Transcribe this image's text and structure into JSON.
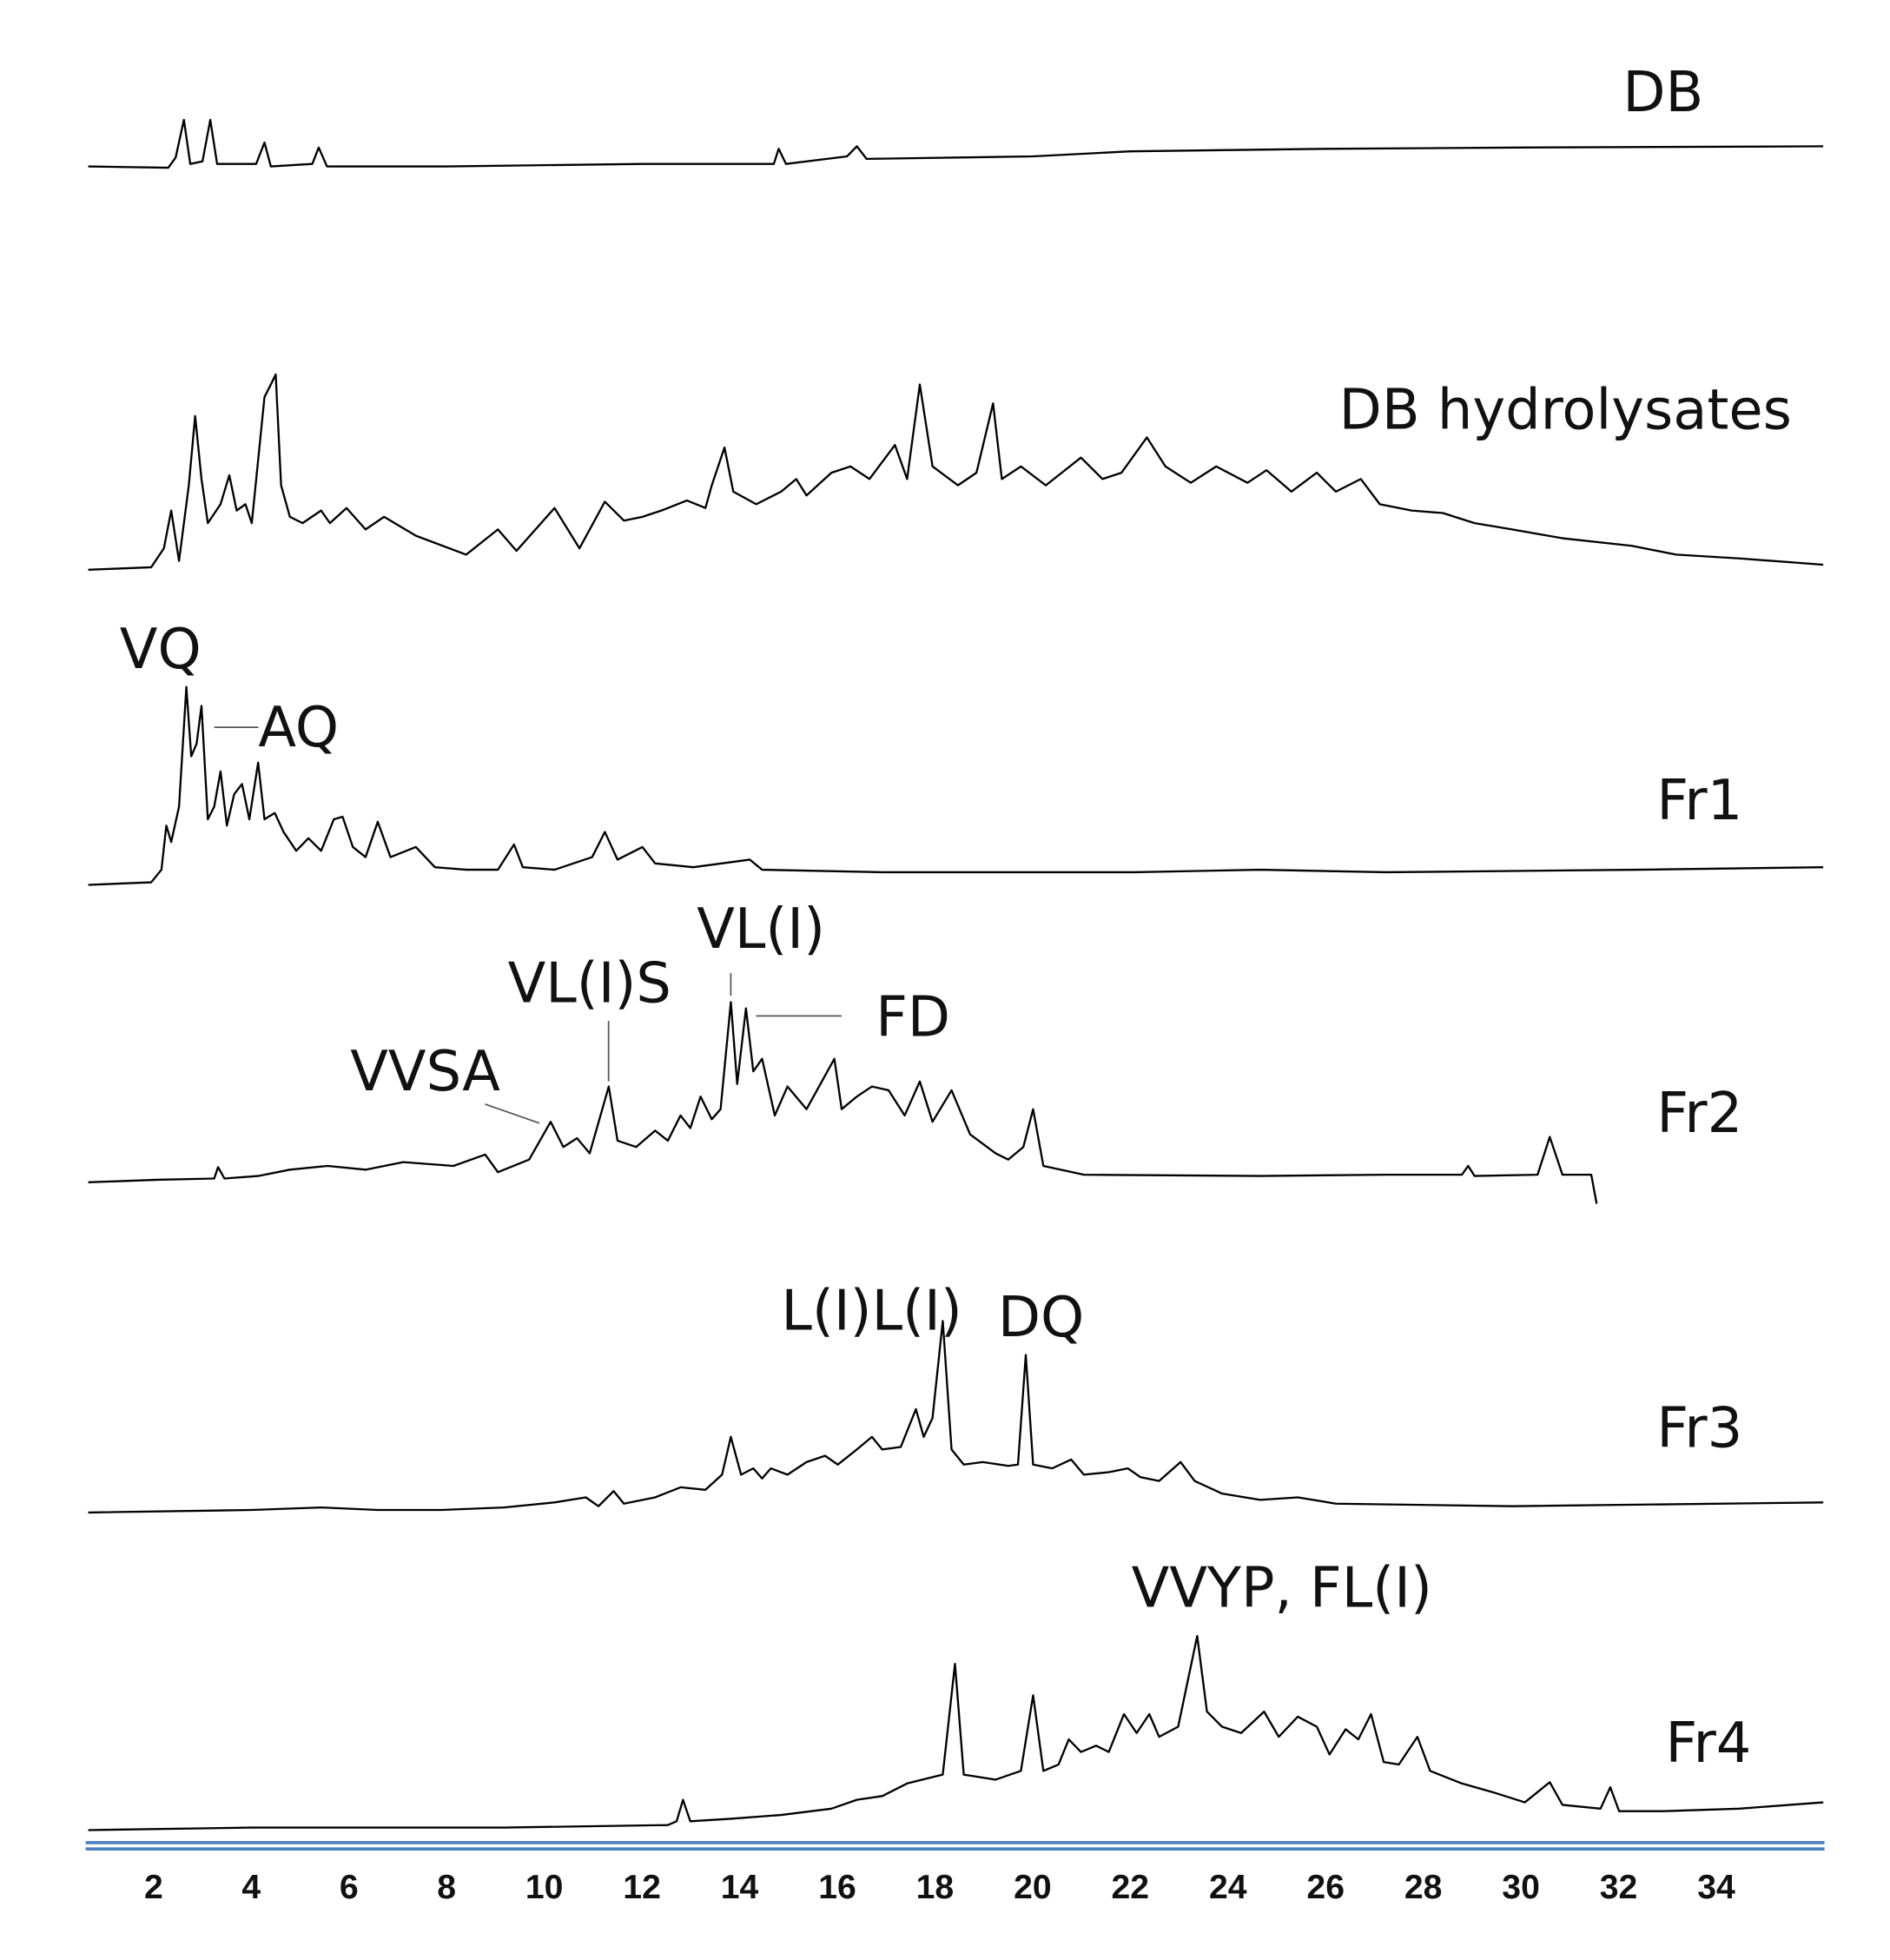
{
  "chart_data": {
    "type": "line",
    "xlim": [
      0.66,
      36.19
    ],
    "xticks": [
      2,
      4,
      6,
      8,
      10,
      12,
      14,
      16,
      18,
      20,
      22,
      24,
      26,
      28,
      30,
      32,
      34
    ],
    "series": [
      {
        "name": "DB",
        "color": "#000000",
        "annotations": [],
        "x": [
          0.66,
          2.3,
          2.45,
          2.62,
          2.75,
          3.0,
          3.16,
          3.3,
          4.1,
          4.27,
          4.4,
          5.25,
          5.38,
          5.55,
          8,
          12,
          14.7,
          14.8,
          14.95,
          16.2,
          16.4,
          16.6,
          20,
          22,
          26,
          30,
          36.19
        ],
        "values": [
          68,
          67,
          75,
          105,
          70,
          72,
          105,
          70,
          70,
          87,
          68,
          70,
          83,
          68,
          68,
          70,
          70,
          82,
          70,
          76,
          84,
          74,
          76,
          80,
          82,
          83,
          84
        ]
      },
      {
        "name": "DB hydrolysates",
        "color": "#000000",
        "annotations": [],
        "x": [
          0.66,
          1.95,
          2.21,
          2.36,
          2.52,
          2.72,
          2.85,
          2.98,
          3.11,
          3.37,
          3.55,
          3.7,
          3.88,
          4.01,
          4.27,
          4.4,
          4.5,
          4.61,
          4.79,
          5.05,
          5.43,
          5.61,
          5.95,
          6.34,
          6.72,
          7.37,
          8.4,
          9.05,
          9.43,
          10.21,
          10.72,
          11.24,
          11.63,
          12.01,
          12.4,
          12.92,
          13.3,
          13.43,
          13.69,
          13.87,
          14.34,
          14.85,
          15.16,
          15.37,
          15.88,
          16.27,
          16.66,
          17.18,
          17.43,
          17.69,
          17.95,
          18.47,
          18.85,
          19.19,
          19.37,
          19.76,
          20.27,
          20.99,
          21.43,
          21.82,
          22.34,
          22.72,
          23.24,
          23.76,
          24.4,
          24.79,
          25.3,
          25.82,
          26.21,
          26.72,
          27.11,
          27.76,
          28.4,
          29.05,
          29.82,
          30.85,
          32.27,
          33.18,
          34.47,
          36.19
        ],
        "values": [
          0,
          2,
          17,
          47,
          7,
          67,
          122,
          72,
          37,
          52,
          75,
          47,
          52,
          37,
          137,
          147,
          155,
          67,
          42,
          37,
          47,
          37,
          49,
          32,
          42,
          27,
          12,
          32,
          15,
          49,
          17,
          54,
          39,
          42,
          47,
          55,
          49,
          67,
          97,
          62,
          52,
          62,
          72,
          59,
          77,
          82,
          72,
          99,
          72,
          147,
          82,
          67,
          77,
          132,
          72,
          82,
          67,
          89,
          72,
          77,
          105,
          82,
          69,
          82,
          69,
          79,
          62,
          77,
          62,
          72,
          52,
          47,
          45,
          37,
          32,
          25,
          19,
          12,
          9,
          4
        ]
      },
      {
        "name": "Fr1",
        "color": "#000000",
        "annotations": [
          "VQ",
          "AQ"
        ],
        "x": [
          0.66,
          1.95,
          2.16,
          2.26,
          2.36,
          2.52,
          2.67,
          2.77,
          2.88,
          2.98,
          3.11,
          3.24,
          3.37,
          3.5,
          3.65,
          3.81,
          3.96,
          4.14,
          4.27,
          4.48,
          4.66,
          4.92,
          5.17,
          5.43,
          5.69,
          5.87,
          6.08,
          6.34,
          6.59,
          6.85,
          7.37,
          7.76,
          8.4,
          9.05,
          9.38,
          9.56,
          10.21,
          10.98,
          11.24,
          11.5,
          12.01,
          12.27,
          13.05,
          14.21,
          14.46,
          16.92,
          22.08,
          24.66,
          27.24,
          32.4,
          36.19
        ],
        "values": [
          2,
          4,
          14,
          49,
          36,
          64,
          159,
          104,
          114,
          144,
          54,
          64,
          92,
          49,
          74,
          82,
          54,
          99,
          54,
          59,
          44,
          29,
          39,
          29,
          54,
          56,
          32,
          24,
          52,
          24,
          32,
          16,
          14,
          14,
          34,
          16,
          14,
          24,
          44,
          22,
          32,
          19,
          16,
          22,
          14,
          12,
          12,
          14,
          12,
          14,
          16
        ]
      },
      {
        "name": "Fr2",
        "color": "#000000",
        "annotations": [
          "VVSA",
          "VL(I)S",
          "VL(I)",
          "FD"
        ],
        "x": [
          0.66,
          2.08,
          3.24,
          3.32,
          3.45,
          4.14,
          4.79,
          5.56,
          6.34,
          7.11,
          8.14,
          8.79,
          9.05,
          9.69,
          10.13,
          10.39,
          10.67,
          10.93,
          11.32,
          11.5,
          11.88,
          12.27,
          12.53,
          12.79,
          12.99,
          13.2,
          13.43,
          13.61,
          13.82,
          13.95,
          14.13,
          14.28,
          14.46,
          14.72,
          14.98,
          15.37,
          15.94,
          16.09,
          16.4,
          16.71,
          17.05,
          17.38,
          17.69,
          17.95,
          18.34,
          18.72,
          19.24,
          19.5,
          19.81,
          20.01,
          20.22,
          21.05,
          24.66,
          27.24,
          28.79,
          28.92,
          29.05,
          30.34,
          30.59,
          30.85,
          31.44,
          31.55
        ],
        "values": [
          18,
          20,
          21,
          30,
          21,
          23,
          28,
          31,
          28,
          34,
          31,
          40,
          26,
          36,
          66,
          46,
          53,
          41,
          94,
          51,
          46,
          59,
          51,
          71,
          61,
          86,
          68,
          76,
          161,
          96,
          156,
          106,
          116,
          71,
          94,
          76,
          116,
          76,
          86,
          94,
          91,
          71,
          98,
          66,
          91,
          56,
          41,
          36,
          46,
          76,
          31,
          24,
          23,
          24,
          24,
          31,
          23,
          24,
          54,
          24,
          24,
          1
        ]
      },
      {
        "name": "Fr3",
        "color": "#000000",
        "annotations": [
          "L(I)L(I)",
          "DQ"
        ],
        "x": [
          0.66,
          4.01,
          5.43,
          6.59,
          7.88,
          9.17,
          10.21,
          10.85,
          11.11,
          11.42,
          11.63,
          12.27,
          12.79,
          13.3,
          13.64,
          13.82,
          14.03,
          14.28,
          14.46,
          14.64,
          14.98,
          15.37,
          15.75,
          16.01,
          16.4,
          16.71,
          16.92,
          17.3,
          17.61,
          17.77,
          17.95,
          18.16,
          18.34,
          18.59,
          18.98,
          19.5,
          19.7,
          19.86,
          20.01,
          20.4,
          20.79,
          21.05,
          21.56,
          21.95,
          22.21,
          22.59,
          23.03,
          23.32,
          23.88,
          24.66,
          25.43,
          26.21,
          29.82,
          36.19
        ],
        "values": [
          8,
          10,
          12,
          10,
          10,
          12,
          16,
          20,
          13,
          25,
          15,
          20,
          28,
          26,
          38,
          68,
          38,
          43,
          35,
          43,
          38,
          48,
          53,
          46,
          58,
          68,
          58,
          60,
          90,
          68,
          83,
          160,
          58,
          46,
          48,
          45,
          46,
          133,
          46,
          43,
          50,
          38,
          40,
          43,
          36,
          33,
          48,
          33,
          23,
          18,
          20,
          15,
          13,
          16
        ]
      },
      {
        "name": "Fr4",
        "color": "#000000",
        "annotations": [
          "VVYP, FL(I)"
        ],
        "x": [
          0.66,
          4.01,
          9.17,
          12.53,
          12.71,
          12.84,
          12.99,
          13.82,
          14.85,
          15.88,
          16.4,
          16.92,
          17.43,
          17.95,
          18.16,
          18.41,
          18.59,
          19.24,
          19.76,
          20.01,
          20.22,
          20.53,
          20.74,
          20.99,
          21.3,
          21.56,
          21.87,
          22.13,
          22.39,
          22.59,
          22.98,
          23.37,
          23.57,
          23.88,
          24.27,
          24.74,
          25.04,
          25.43,
          25.82,
          26.08,
          26.41,
          26.67,
          26.93,
          27.19,
          27.5,
          27.88,
          28.14,
          28.79,
          29.43,
          30.08,
          30.59,
          30.85,
          31.63,
          31.83,
          32.01,
          32.92,
          34.47,
          36.19
        ],
        "values": [
          8,
          10,
          10,
          12,
          15,
          32,
          15,
          17,
          20,
          25,
          32,
          35,
          45,
          50,
          52,
          140,
          52,
          48,
          55,
          115,
          55,
          60,
          80,
          70,
          75,
          70,
          100,
          85,
          100,
          82,
          90,
          162,
          102,
          90,
          85,
          102,
          82,
          98,
          90,
          68,
          88,
          80,
          100,
          62,
          60,
          82,
          55,
          45,
          38,
          30,
          46,
          28,
          25,
          42,
          23,
          23,
          25,
          30
        ]
      }
    ]
  }
}
